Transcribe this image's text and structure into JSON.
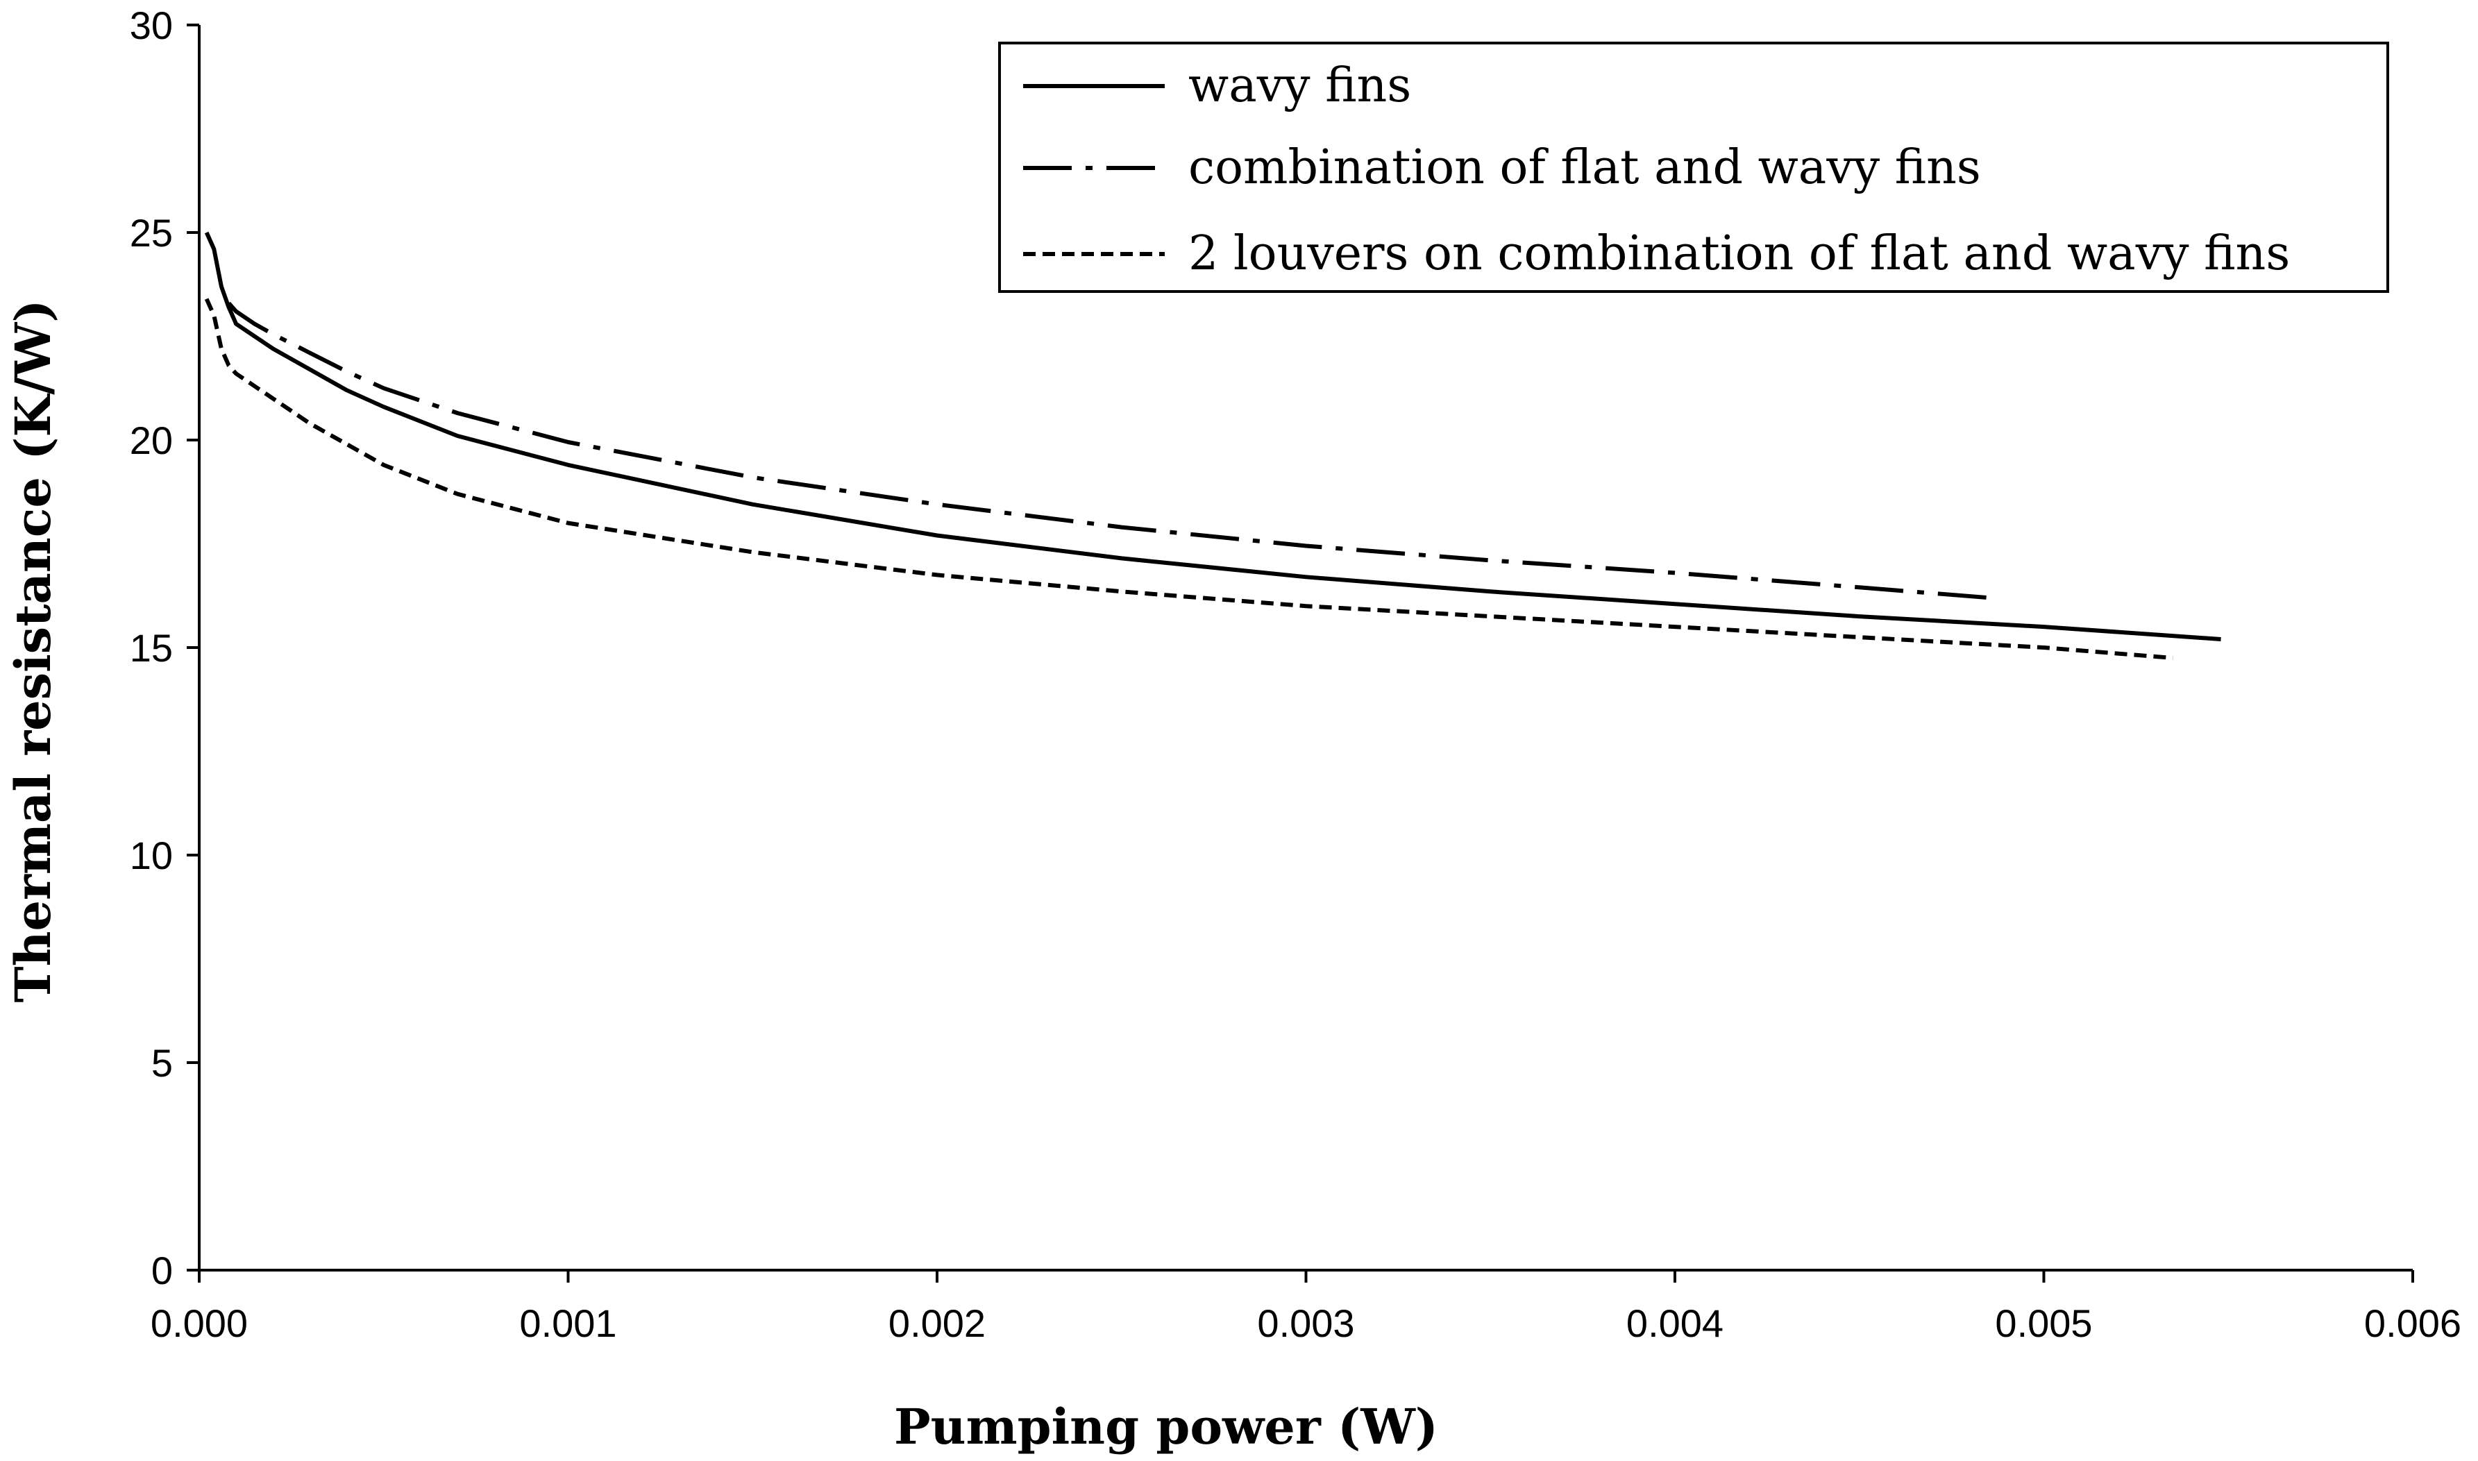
{
  "chart_data": {
    "type": "line",
    "title": "",
    "xlabel": "Pumping power (W)",
    "ylabel": "Thermal resistance (K/W)",
    "xlim": [
      0,
      0.006
    ],
    "ylim": [
      0,
      30
    ],
    "xticks": [
      0,
      0.001,
      0.002,
      0.003,
      0.004,
      0.005,
      0.006
    ],
    "xtick_labels": [
      "0.000",
      "0.001",
      "0.002",
      "0.003",
      "0.004",
      "0.005",
      "0.006"
    ],
    "yticks": [
      0,
      5,
      10,
      15,
      20,
      25,
      30
    ],
    "ytick_labels": [
      "0",
      "5",
      "10",
      "15",
      "20",
      "25",
      "30"
    ],
    "grid": false,
    "legend_position": "top-right",
    "series": [
      {
        "name": "wavy fins",
        "style": "solid",
        "x": [
          2e-05,
          4e-05,
          6e-05,
          8e-05,
          0.0001,
          0.00015,
          0.0002,
          0.0003,
          0.0004,
          0.0005,
          0.0007,
          0.001,
          0.0015,
          0.002,
          0.0025,
          0.003,
          0.0035,
          0.004,
          0.0045,
          0.005,
          0.00548
        ],
        "y": [
          25.0,
          24.6,
          23.7,
          23.2,
          22.8,
          22.5,
          22.2,
          21.7,
          21.2,
          20.8,
          20.1,
          19.4,
          18.45,
          17.7,
          17.15,
          16.7,
          16.35,
          16.05,
          15.75,
          15.5,
          15.2
        ]
      },
      {
        "name": "combination of flat and wavy fins",
        "style": "dash-dot",
        "x": [
          8e-05,
          0.0001,
          0.00015,
          0.0002,
          0.0003,
          0.0004,
          0.0005,
          0.0007,
          0.001,
          0.0015,
          0.002,
          0.0025,
          0.003,
          0.0035,
          0.004,
          0.0045,
          0.00485
        ],
        "y": [
          23.3,
          23.1,
          22.8,
          22.55,
          22.1,
          21.65,
          21.25,
          20.65,
          19.95,
          19.1,
          18.45,
          17.9,
          17.45,
          17.1,
          16.8,
          16.45,
          16.2
        ]
      },
      {
        "name": "2 louvers on combination of flat and wavy fins",
        "style": "dashed",
        "x": [
          2e-05,
          4e-05,
          6e-05,
          8e-05,
          0.0001,
          0.00015,
          0.0002,
          0.0003,
          0.0004,
          0.0005,
          0.0007,
          0.001,
          0.0015,
          0.002,
          0.0025,
          0.003,
          0.0035,
          0.004,
          0.0045,
          0.005,
          0.00535
        ],
        "y": [
          23.4,
          23.0,
          22.2,
          21.8,
          21.6,
          21.3,
          21.0,
          20.4,
          19.9,
          19.4,
          18.7,
          18.0,
          17.3,
          16.75,
          16.35,
          16.0,
          15.75,
          15.5,
          15.25,
          15.0,
          14.75
        ]
      }
    ]
  }
}
